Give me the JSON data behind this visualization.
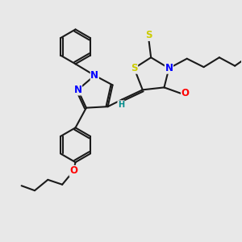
{
  "bg_color": "#e8e8e8",
  "bond_color": "#1a1a1a",
  "bond_width": 1.5,
  "atom_colors": {
    "N": "#0000ff",
    "O": "#ff0000",
    "S": "#cccc00",
    "H": "#008b8b",
    "C": "#1a1a1a"
  },
  "font_size": 7.5,
  "fig_size": [
    3.0,
    3.0
  ],
  "dpi": 100,
  "xlim": [
    0,
    10
  ],
  "ylim": [
    0,
    10
  ]
}
